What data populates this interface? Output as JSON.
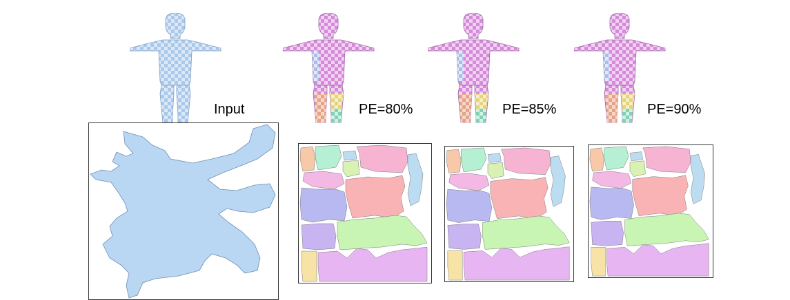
{
  "labels": {
    "input": "Input",
    "pe80": "PE=80%",
    "pe85": "PE=85%",
    "pe90": "PE=90%"
  },
  "colors": {
    "input_mesh": "#b9d6f2",
    "chart_pink": "#f6b3d2",
    "chart_salmon": "#f9b3b5",
    "chart_blue": "#b9b9f2",
    "chart_lavender": "#c8b4f0",
    "chart_green": "#c9f5b4",
    "chart_magenta": "#e7b6f2",
    "chart_yellow": "#f8e3a6",
    "chart_mint": "#b5f0d4",
    "chart_sky": "#bcdcf2",
    "chart_peach": "#f7c9a8"
  }
}
